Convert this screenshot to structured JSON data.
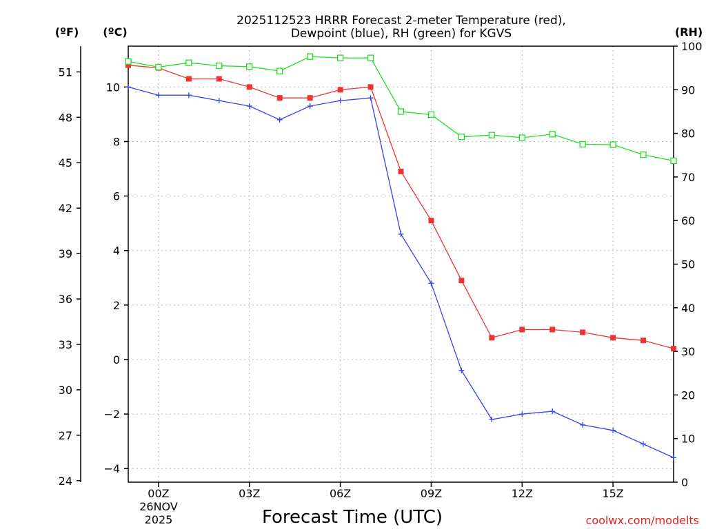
{
  "chart_data": {
    "type": "line",
    "title_lines": [
      "2025112523 HRRR Forecast 2-meter Temperature (red),",
      "Dewpoint (blue), RH (green) for KGVS"
    ],
    "xlabel": "Forecast Time (UTC)",
    "credit": "coolwx.com/modelts",
    "units": {
      "fahrenheit": "(ºF)",
      "celsius": "(ºC)",
      "rh": "(RH)"
    },
    "x_hours": [
      -1,
      0,
      1,
      2,
      3,
      4,
      5,
      6,
      7,
      8,
      9,
      10,
      11,
      12,
      13,
      14,
      15,
      16,
      17
    ],
    "xlim": [
      -1,
      17
    ],
    "x_ticks": [
      {
        "hour": 0,
        "label": "00Z"
      },
      {
        "hour": 3,
        "label": "03Z"
      },
      {
        "hour": 6,
        "label": "06Z"
      },
      {
        "hour": 9,
        "label": "09Z"
      },
      {
        "hour": 12,
        "label": "12Z"
      },
      {
        "hour": 15,
        "label": "15Z"
      }
    ],
    "date_lines": [
      "26NOV",
      "2025"
    ],
    "y_celsius": {
      "min": -4.5,
      "max": 11.5,
      "ticks": [
        "-4",
        "-2",
        "0",
        "2",
        "4",
        "6",
        "8",
        "10"
      ]
    },
    "y_fahrenheit": {
      "ticks": [
        "24",
        "27",
        "30",
        "33",
        "36",
        "39",
        "42",
        "45",
        "48",
        "51"
      ]
    },
    "y_rh": {
      "min": 0,
      "max": 100,
      "ticks": [
        "0",
        "10",
        "20",
        "30",
        "40",
        "50",
        "60",
        "70",
        "80",
        "90",
        "100"
      ]
    },
    "series": [
      {
        "name": "Temperature",
        "axis": "celsius",
        "color": "#ee3333",
        "marker": "filled-square",
        "values": [
          10.8,
          10.7,
          10.3,
          10.3,
          10.0,
          9.6,
          9.6,
          9.9,
          10.0,
          6.9,
          5.1,
          2.9,
          0.8,
          1.1,
          1.1,
          1.0,
          0.8,
          0.7,
          0.4
        ]
      },
      {
        "name": "Dewpoint",
        "axis": "celsius",
        "color": "#3344ee",
        "marker": "plus",
        "values": [
          10.0,
          9.7,
          9.7,
          9.5,
          9.3,
          8.8,
          9.3,
          9.5,
          9.6,
          4.6,
          2.8,
          -0.4,
          -2.2,
          -2.0,
          -1.9,
          -2.4,
          -2.6,
          -3.1,
          -3.6
        ]
      },
      {
        "name": "Relative Humidity",
        "axis": "rh",
        "color": "#22dd22",
        "marker": "open-square",
        "values": [
          96.5,
          95.2,
          96.2,
          95.5,
          95.3,
          94.3,
          97.6,
          97.3,
          97.3,
          85.0,
          84.3,
          79.2,
          79.6,
          79.0,
          79.8,
          77.5,
          77.4,
          75.1,
          73.7
        ]
      }
    ]
  }
}
